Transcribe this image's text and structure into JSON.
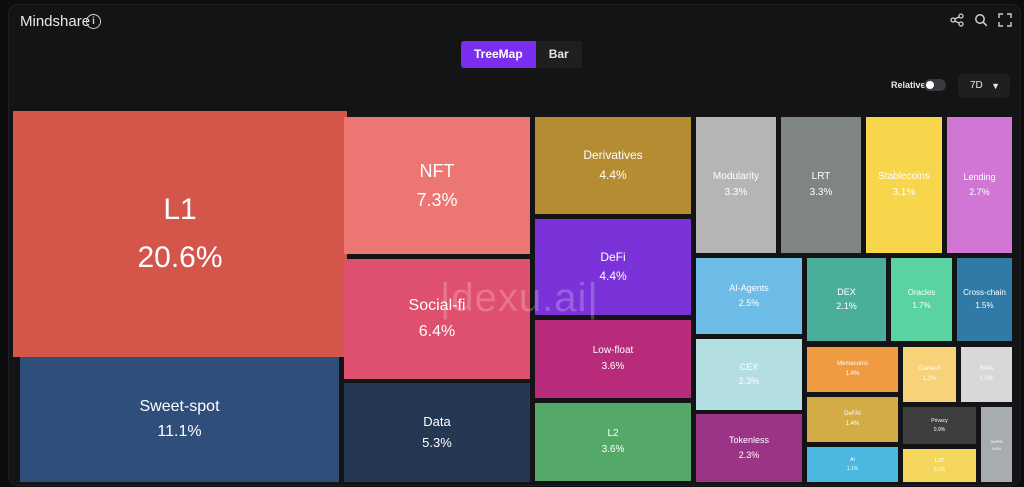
{
  "header": {
    "title": "Mindshare"
  },
  "view_toggle": {
    "treemap": "TreeMap",
    "bar": "Bar"
  },
  "controls": {
    "relative_label": "Relative",
    "range": "7D"
  },
  "watermark": "|dexu.ai|",
  "tiles": [
    {
      "name": "L1",
      "pct": "20.6%",
      "color": "#d4554a"
    },
    {
      "name": "Sweet-spot",
      "pct": "11.1%",
      "color": "#2f4f7a"
    },
    {
      "name": "NFT",
      "pct": "7.3%",
      "color": "#ec7672"
    },
    {
      "name": "Social-fi",
      "pct": "6.4%",
      "color": "#df4f6e"
    },
    {
      "name": "Data",
      "pct": "5.3%",
      "color": "#253753"
    },
    {
      "name": "Derivatives",
      "pct": "4.4%",
      "color": "#b58c32"
    },
    {
      "name": "DeFi",
      "pct": "4.4%",
      "color": "#7b33d9"
    },
    {
      "name": "Low-float",
      "pct": "3.6%",
      "color": "#b72b7a"
    },
    {
      "name": "L2",
      "pct": "3.6%",
      "color": "#55a968"
    },
    {
      "name": "Modularity",
      "pct": "3.3%",
      "color": "#b5b5b5"
    },
    {
      "name": "LRT",
      "pct": "3.3%",
      "color": "#7f8484"
    },
    {
      "name": "Stablecoins",
      "pct": "3.1%",
      "color": "#f7d64c"
    },
    {
      "name": "Lending",
      "pct": "2.7%",
      "color": "#d276d6"
    },
    {
      "name": "AI-Agents",
      "pct": "2.5%",
      "color": "#6ebde9"
    },
    {
      "name": "DEX",
      "pct": "2.1%",
      "color": "#4aaf9a"
    },
    {
      "name": "Oracles",
      "pct": "1.7%",
      "color": "#58d3a1"
    },
    {
      "name": "Cross-chain",
      "pct": "1.5%",
      "color": "#2f7aa7"
    },
    {
      "name": "CEX",
      "pct": "2.3%",
      "color": "#b3dfe2"
    },
    {
      "name": "Tokenless",
      "pct": "2.3%",
      "color": "#9b3487"
    },
    {
      "name": "Memecoins",
      "pct": "1.4%",
      "color": "#ee9b41"
    },
    {
      "name": "Game-fi",
      "pct": "1.1%",
      "color": "#f8d278"
    },
    {
      "name": "RWA",
      "pct": "1.0%",
      "color": "#d8d8d8"
    },
    {
      "name": "DeFAI",
      "pct": "1.4%",
      "color": "#d4ac45"
    },
    {
      "name": "Privacy",
      "pct": "0.9%",
      "color": "#3e3e3e"
    },
    {
      "name": "AI",
      "pct": "1.1%",
      "color": "#4ab8e0"
    },
    {
      "name": "LST",
      "pct": "0.7%",
      "color": "#f5d75e"
    },
    {
      "name": "DePIN",
      "pct": "0.6%",
      "color": "#a7acaf"
    }
  ]
}
